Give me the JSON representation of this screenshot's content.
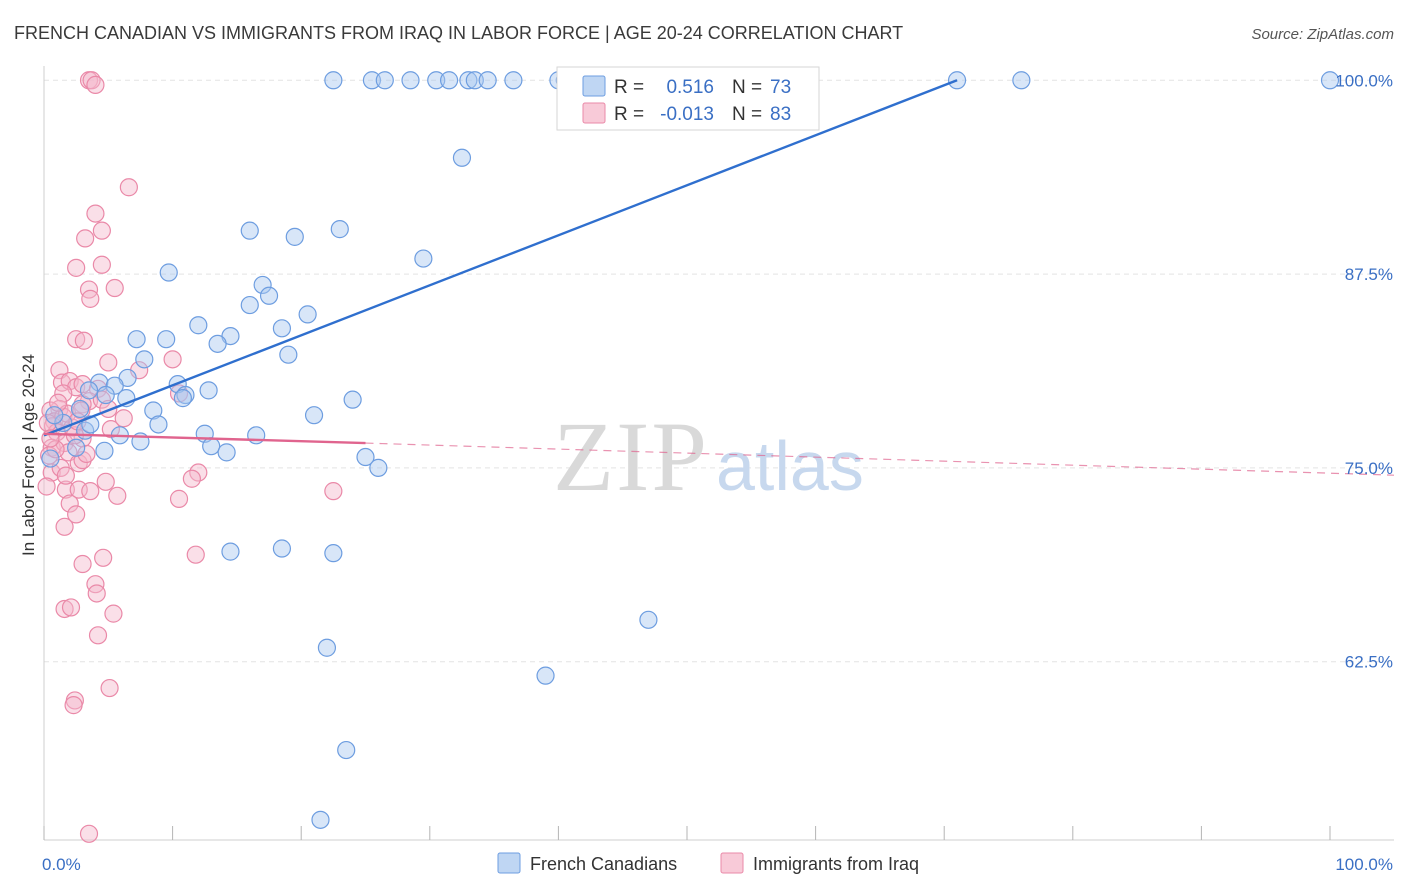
{
  "title": "FRENCH CANADIAN VS IMMIGRANTS FROM IRAQ IN LABOR FORCE | AGE 20-24 CORRELATION CHART",
  "source": "Source: ZipAtlas.com",
  "watermark": {
    "zip": "ZIP",
    "atlas": "atlas"
  },
  "colors": {
    "blue_fill": "#a9c8ef",
    "blue_stroke": "#6d9de0",
    "blue_line": "#2f6fce",
    "pink_fill": "#f5b8cb",
    "pink_stroke": "#ea89a8",
    "pink_line": "#e0648e",
    "tick_text": "#3a6fc4",
    "grid": "#e3e3e3"
  },
  "legend": {
    "rows": [
      {
        "r_label": "R =",
        "r_value": "0.516",
        "n_label": "N =",
        "n_value": "73"
      },
      {
        "r_label": "R =",
        "r_value": "-0.013",
        "n_label": "N =",
        "n_value": "83"
      }
    ]
  },
  "bottom_legend": [
    "French Canadians",
    "Immigrants from Iraq"
  ],
  "chart_data": {
    "type": "scatter",
    "title": "FRENCH CANADIAN VS IMMIGRANTS FROM IRAQ IN LABOR FORCE | AGE 20-24 CORRELATION CHART",
    "xlabel": "",
    "ylabel": "In Labor Force | Age 20-24",
    "xlim": [
      0,
      100
    ],
    "ylim": [
      51,
      101.5
    ],
    "x_tick_labels": [
      "0.0%",
      "100.0%"
    ],
    "y_ticks": [
      62.5,
      75.0,
      87.5,
      100.0
    ],
    "y_tick_labels": [
      "62.5%",
      "75.0%",
      "87.5%",
      "100.0%"
    ],
    "series": [
      {
        "name": "French Canadians",
        "R": 0.516,
        "N": 73,
        "trend": {
          "x": [
            0,
            71
          ],
          "y": [
            77.1,
            100.0
          ]
        },
        "points": [
          [
            22.5,
            100
          ],
          [
            25.5,
            100
          ],
          [
            26.5,
            100
          ],
          [
            28.5,
            100
          ],
          [
            30.5,
            100
          ],
          [
            31.5,
            100
          ],
          [
            33,
            100
          ],
          [
            33.5,
            100
          ],
          [
            34.5,
            100
          ],
          [
            36.5,
            100
          ],
          [
            40,
            100
          ],
          [
            40.5,
            100
          ],
          [
            46,
            100
          ],
          [
            53,
            100
          ],
          [
            71,
            100
          ],
          [
            76,
            100
          ],
          [
            100,
            100
          ],
          [
            32.5,
            95.0
          ],
          [
            16,
            90.3
          ],
          [
            19.5,
            89.9
          ],
          [
            23,
            90.4
          ],
          [
            29.5,
            88.5
          ],
          [
            9.7,
            87.6
          ],
          [
            17,
            86.8
          ],
          [
            17.5,
            86.1
          ],
          [
            16,
            85.5
          ],
          [
            20.5,
            84.9
          ],
          [
            12,
            84.2
          ],
          [
            18.5,
            84.0
          ],
          [
            7.2,
            83.3
          ],
          [
            9.5,
            83.3
          ],
          [
            14.5,
            83.5
          ],
          [
            13.5,
            83.0
          ],
          [
            19,
            82.3
          ],
          [
            7.8,
            82.0
          ],
          [
            6.5,
            80.8
          ],
          [
            4.3,
            80.5
          ],
          [
            5.5,
            80.3
          ],
          [
            10.4,
            80.4
          ],
          [
            12.8,
            80.0
          ],
          [
            3.5,
            80.0
          ],
          [
            4.8,
            79.7
          ],
          [
            6.4,
            79.5
          ],
          [
            11,
            79.7
          ],
          [
            24,
            79.4
          ],
          [
            2.8,
            78.8
          ],
          [
            8.5,
            78.7
          ],
          [
            21,
            78.4
          ],
          [
            8.9,
            77.8
          ],
          [
            10.8,
            79.5
          ],
          [
            1.5,
            77.9
          ],
          [
            3.2,
            77.4
          ],
          [
            5.9,
            77.1
          ],
          [
            12.5,
            77.2
          ],
          [
            16.5,
            77.1
          ],
          [
            13,
            76.4
          ],
          [
            14.2,
            76.0
          ],
          [
            4.7,
            76.1
          ],
          [
            25,
            75.7
          ],
          [
            26,
            75.0
          ],
          [
            14.5,
            69.6
          ],
          [
            18.5,
            69.8
          ],
          [
            22.5,
            69.5
          ],
          [
            47,
            65.2
          ],
          [
            22,
            63.4
          ],
          [
            39,
            61.6
          ],
          [
            23.5,
            56.8
          ],
          [
            21.5,
            52.3
          ],
          [
            0.5,
            75.6
          ],
          [
            2.5,
            76.3
          ],
          [
            7.5,
            76.7
          ],
          [
            0.8,
            78.4
          ],
          [
            3.6,
            77.8
          ]
        ]
      },
      {
        "name": "Immigrants from Iraq",
        "R": -0.013,
        "N": 83,
        "trend": {
          "x": [
            0,
            25
          ],
          "y": [
            77.2,
            76.6
          ]
        },
        "trend_ext": {
          "x": [
            25,
            100
          ],
          "y": [
            76.6,
            74.4
          ]
        },
        "points": [
          [
            3.5,
            100
          ],
          [
            3.7,
            100
          ],
          [
            4,
            99.7
          ],
          [
            6.6,
            93.1
          ],
          [
            4,
            91.4
          ],
          [
            4.5,
            90.3
          ],
          [
            3.2,
            89.8
          ],
          [
            4.5,
            88.1
          ],
          [
            2.5,
            87.9
          ],
          [
            5.5,
            86.6
          ],
          [
            3.5,
            86.5
          ],
          [
            3.6,
            85.9
          ],
          [
            2.5,
            83.3
          ],
          [
            3.1,
            83.2
          ],
          [
            10,
            82.0
          ],
          [
            5,
            81.8
          ],
          [
            7.4,
            81.3
          ],
          [
            1.2,
            81.3
          ],
          [
            1.4,
            80.5
          ],
          [
            2,
            80.6
          ],
          [
            2.5,
            80.2
          ],
          [
            3,
            80.4
          ],
          [
            1.5,
            79.8
          ],
          [
            4.2,
            80.1
          ],
          [
            3.5,
            79.3
          ],
          [
            3,
            79.1
          ],
          [
            1.2,
            78.8
          ],
          [
            0.5,
            78.7
          ],
          [
            0.8,
            78.0
          ],
          [
            1.5,
            78.3
          ],
          [
            0.7,
            77.7
          ],
          [
            4.5,
            79.4
          ],
          [
            10.5,
            79.8
          ],
          [
            5,
            78.8
          ],
          [
            1,
            77.3
          ],
          [
            2.2,
            77.6
          ],
          [
            3,
            76.9
          ],
          [
            0.6,
            76.3
          ],
          [
            1.6,
            76.6
          ],
          [
            0.4,
            75.8
          ],
          [
            1.9,
            76.0
          ],
          [
            2.7,
            75.3
          ],
          [
            0.6,
            74.7
          ],
          [
            3,
            75.5
          ],
          [
            12,
            74.7
          ],
          [
            11.5,
            74.3
          ],
          [
            1.7,
            73.6
          ],
          [
            2.7,
            73.6
          ],
          [
            3.6,
            73.5
          ],
          [
            5.7,
            73.2
          ],
          [
            10.5,
            73.0
          ],
          [
            22.5,
            73.5
          ],
          [
            2,
            72.7
          ],
          [
            2.5,
            72.0
          ],
          [
            1.6,
            71.2
          ],
          [
            11.8,
            69.4
          ],
          [
            4.6,
            69.2
          ],
          [
            3,
            68.8
          ],
          [
            4,
            67.5
          ],
          [
            4.1,
            66.9
          ],
          [
            1.6,
            65.9
          ],
          [
            2.1,
            66.0
          ],
          [
            5.4,
            65.6
          ],
          [
            4.2,
            64.2
          ],
          [
            5.1,
            60.8
          ],
          [
            2.4,
            60.0
          ],
          [
            2.3,
            59.7
          ],
          [
            3.5,
            51.4
          ],
          [
            0.3,
            77.9
          ],
          [
            1.8,
            78.5
          ],
          [
            2.9,
            78.7
          ],
          [
            0.9,
            76.2
          ],
          [
            1.3,
            75.0
          ],
          [
            5.2,
            77.5
          ],
          [
            6.2,
            78.2
          ],
          [
            0.2,
            73.8
          ],
          [
            1.1,
            79.2
          ],
          [
            2.4,
            77.1
          ],
          [
            3.3,
            75.9
          ],
          [
            4.8,
            74.1
          ],
          [
            0.5,
            76.9
          ],
          [
            1.7,
            74.5
          ],
          [
            2.6,
            78.0
          ]
        ]
      }
    ]
  }
}
